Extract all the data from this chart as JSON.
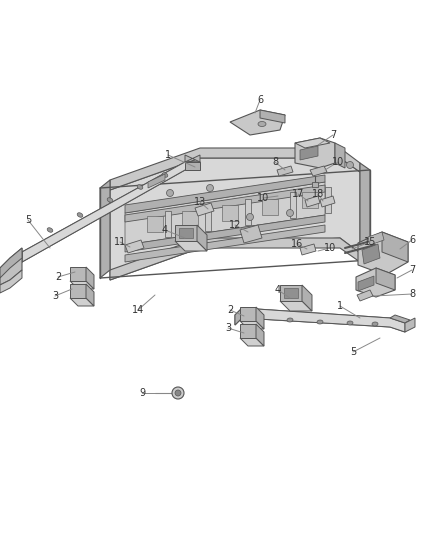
{
  "background_color": "#ffffff",
  "fig_width": 4.38,
  "fig_height": 5.33,
  "dpi": 100,
  "ec": "#555555",
  "fc_light": "#d0d0d0",
  "fc_mid": "#b0b0b0",
  "fc_dark": "#909090",
  "fc_vdark": "#707070"
}
